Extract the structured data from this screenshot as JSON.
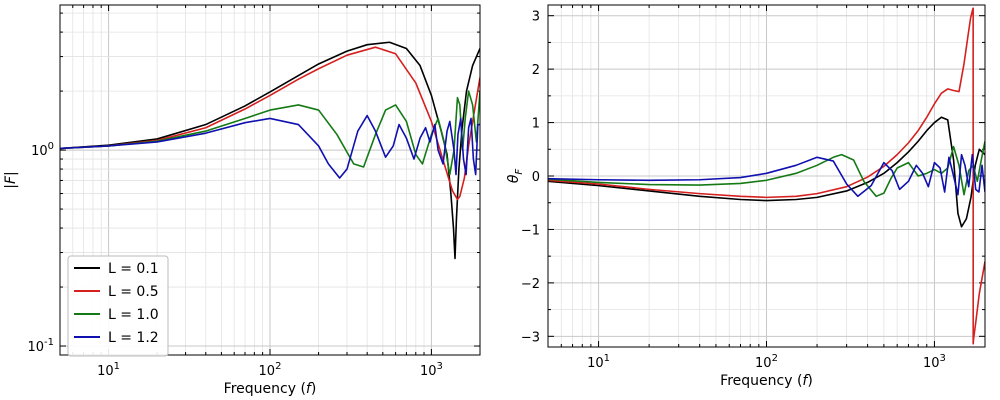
{
  "chart_data": [
    {
      "type": "line",
      "title": "",
      "xlabel": "Frequency (f)",
      "ylabel": "|F|",
      "xscale": "log",
      "yscale": "log",
      "xlim": [
        5,
        2000
      ],
      "ylim": [
        0.09,
        5.5
      ],
      "grid": "both major and minor",
      "legend": "bottom-left",
      "xticks": [
        {
          "value": 10,
          "label": "10^1"
        },
        {
          "value": 100,
          "label": "10^2"
        },
        {
          "value": 1000,
          "label": "10^3"
        }
      ],
      "yticks": [
        {
          "value": 0.1,
          "label": "10^-1"
        },
        {
          "value": 1,
          "label": "10^0"
        }
      ],
      "series": [
        {
          "name": "L = 0.1",
          "color": "#000000",
          "x": [
            5,
            10,
            20,
            40,
            70,
            100,
            150,
            200,
            300,
            400,
            550,
            700,
            850,
            1000,
            1150,
            1250,
            1320,
            1370,
            1400,
            1430,
            1480,
            1550,
            1650,
            1800,
            2000
          ],
          "y": [
            1.02,
            1.06,
            1.14,
            1.35,
            1.68,
            1.98,
            2.4,
            2.75,
            3.2,
            3.45,
            3.55,
            3.3,
            2.7,
            1.9,
            1.25,
            0.95,
            0.6,
            0.4,
            0.28,
            0.45,
            0.8,
            1.3,
            2.0,
            2.7,
            3.3
          ]
        },
        {
          "name": "L = 0.5",
          "color": "#d62020",
          "x": [
            5,
            10,
            20,
            40,
            70,
            100,
            150,
            200,
            300,
            450,
            600,
            800,
            1000,
            1200,
            1350,
            1450,
            1500,
            1600,
            1700,
            1850,
            2000
          ],
          "y": [
            1.02,
            1.05,
            1.12,
            1.3,
            1.62,
            1.9,
            2.3,
            2.6,
            3.05,
            3.35,
            3.1,
            2.2,
            1.4,
            0.85,
            0.62,
            0.56,
            0.58,
            0.72,
            1.05,
            1.6,
            2.35
          ]
        },
        {
          "name": "L = 1.0",
          "color": "#157a15",
          "x": [
            5,
            10,
            20,
            40,
            70,
            100,
            150,
            200,
            260,
            330,
            380,
            450,
            520,
            600,
            700,
            800,
            880,
            1000,
            1100,
            1200,
            1300,
            1380,
            1450,
            1500,
            1560,
            1620,
            1700,
            1800,
            1900,
            2000
          ],
          "y": [
            1.02,
            1.05,
            1.11,
            1.25,
            1.45,
            1.6,
            1.7,
            1.6,
            1.2,
            0.85,
            0.82,
            1.2,
            1.6,
            1.7,
            1.4,
            0.95,
            0.85,
            1.2,
            1.45,
            1.1,
            0.75,
            1.0,
            1.85,
            1.7,
            1.0,
            1.45,
            2.0,
            1.7,
            1.1,
            2.0
          ]
        },
        {
          "name": "L = 1.2",
          "color": "#1010b0",
          "x": [
            5,
            10,
            20,
            40,
            70,
            100,
            150,
            200,
            230,
            270,
            300,
            350,
            400,
            450,
            520,
            580,
            630,
            700,
            780,
            850,
            920,
            980,
            1050,
            1100,
            1180,
            1250,
            1300,
            1380,
            1420,
            1460,
            1520,
            1580,
            1640,
            1700,
            1760,
            1820,
            1880,
            1940,
            2000
          ],
          "y": [
            1.02,
            1.05,
            1.1,
            1.22,
            1.38,
            1.45,
            1.35,
            1.05,
            0.85,
            0.72,
            0.8,
            1.25,
            1.5,
            1.25,
            0.92,
            1.05,
            1.35,
            1.15,
            0.9,
            1.15,
            1.3,
            1.1,
            1.35,
            1.0,
            0.85,
            1.25,
            1.4,
            1.0,
            0.75,
            1.2,
            1.45,
            0.9,
            0.75,
            1.3,
            1.45,
            0.9,
            0.75,
            1.35,
            1.35
          ]
        }
      ]
    },
    {
      "type": "line",
      "title": "",
      "xlabel": "Frequency (f)",
      "ylabel": "θF",
      "xscale": "log",
      "yscale": "linear",
      "xlim": [
        5,
        2000
      ],
      "ylim": [
        -3.2,
        3.2
      ],
      "grid": "both major and minor",
      "legend": "none",
      "xticks": [
        {
          "value": 10,
          "label": "10^1"
        },
        {
          "value": 100,
          "label": "10^2"
        },
        {
          "value": 1000,
          "label": "10^3"
        }
      ],
      "yticks": [
        {
          "value": -3,
          "label": "−3"
        },
        {
          "value": -2,
          "label": "−2"
        },
        {
          "value": -1,
          "label": "−1"
        },
        {
          "value": 0,
          "label": "0"
        },
        {
          "value": 1,
          "label": "1"
        },
        {
          "value": 2,
          "label": "2"
        },
        {
          "value": 3,
          "label": "3"
        }
      ],
      "series": [
        {
          "name": "L = 0.1",
          "color": "#000000",
          "x": [
            5,
            10,
            20,
            40,
            70,
            100,
            150,
            200,
            300,
            400,
            500,
            600,
            700,
            800,
            900,
            1000,
            1100,
            1200,
            1300,
            1380,
            1450,
            1550,
            1650,
            1750,
            1850,
            2000
          ],
          "y": [
            -0.1,
            -0.18,
            -0.28,
            -0.38,
            -0.44,
            -0.46,
            -0.44,
            -0.4,
            -0.28,
            -0.12,
            0.05,
            0.25,
            0.45,
            0.65,
            0.85,
            1.0,
            1.1,
            1.05,
            0.3,
            -0.7,
            -0.95,
            -0.8,
            -0.4,
            0.2,
            0.5,
            0.4
          ]
        },
        {
          "name": "L = 0.5",
          "color": "#d62020",
          "x": [
            5,
            10,
            20,
            40,
            70,
            100,
            150,
            200,
            300,
            400,
            500,
            600,
            700,
            800,
            900,
            1000,
            1100,
            1200,
            1300,
            1400,
            1500,
            1580,
            1640,
            1690,
            1700,
            1701,
            1710,
            1760,
            1850,
            2000
          ],
          "y": [
            -0.08,
            -0.15,
            -0.25,
            -0.33,
            -0.38,
            -0.4,
            -0.38,
            -0.33,
            -0.2,
            -0.02,
            0.18,
            0.4,
            0.62,
            0.85,
            1.1,
            1.35,
            1.55,
            1.63,
            1.6,
            1.58,
            2.1,
            2.6,
            2.95,
            3.12,
            3.14,
            -3.14,
            -3.05,
            -2.75,
            -2.2,
            -1.6
          ]
        },
        {
          "name": "L = 1.0",
          "color": "#157a15",
          "x": [
            5,
            10,
            20,
            40,
            70,
            100,
            150,
            200,
            250,
            280,
            330,
            380,
            450,
            500,
            550,
            600,
            700,
            800,
            900,
            1000,
            1100,
            1200,
            1300,
            1400,
            1500,
            1600,
            1700,
            1800,
            1900,
            2000
          ],
          "y": [
            -0.06,
            -0.12,
            -0.16,
            -0.17,
            -0.14,
            -0.08,
            0.05,
            0.2,
            0.35,
            0.4,
            0.3,
            -0.1,
            -0.38,
            -0.32,
            -0.05,
            0.15,
            0.25,
            0.0,
            0.05,
            0.12,
            0.05,
            0.15,
            0.55,
            0.2,
            -0.35,
            0.1,
            0.2,
            -0.1,
            0.3,
            0.65
          ]
        },
        {
          "name": "L = 1.2",
          "color": "#1010b0",
          "x": [
            5,
            10,
            20,
            40,
            70,
            100,
            150,
            200,
            250,
            300,
            350,
            420,
            500,
            560,
            620,
            700,
            780,
            850,
            920,
            1000,
            1080,
            1150,
            1220,
            1300,
            1380,
            1450,
            1520,
            1600,
            1680,
            1760,
            1840,
            1920,
            2000
          ],
          "y": [
            -0.05,
            -0.07,
            -0.08,
            -0.07,
            -0.03,
            0.05,
            0.2,
            0.35,
            0.28,
            -0.15,
            -0.38,
            -0.18,
            0.25,
            0.1,
            -0.25,
            -0.1,
            0.2,
            0.05,
            -0.2,
            0.25,
            0.15,
            -0.3,
            0.35,
            0.0,
            -0.35,
            0.4,
            0.2,
            -0.2,
            0.4,
            -0.25,
            -0.3,
            0.2,
            -0.3
          ]
        }
      ]
    }
  ]
}
